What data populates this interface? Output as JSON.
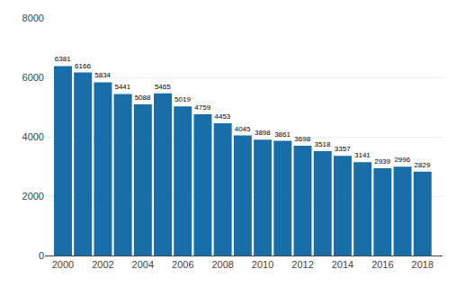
{
  "chart_data": {
    "type": "bar",
    "x": [
      2000,
      2001,
      2002,
      2003,
      2004,
      2005,
      2006,
      2007,
      2008,
      2009,
      2010,
      2011,
      2012,
      2013,
      2014,
      2015,
      2016,
      2017,
      2018
    ],
    "values": [
      6381,
      6166,
      5834,
      5441,
      5088,
      5465,
      5019,
      4759,
      4453,
      4045,
      3898,
      3861,
      3698,
      3518,
      3357,
      3141,
      2939,
      2996,
      2829
    ],
    "color": "#1a6ea8",
    "xlim": [
      1999.1,
      2019.0
    ],
    "xticks": [
      2000,
      2002,
      2004,
      2006,
      2008,
      2010,
      2012,
      2014,
      2016,
      2018
    ],
    "ylim": [
      0,
      8000
    ],
    "yticks": [
      0,
      2000,
      4000,
      6000,
      8000
    ],
    "grid": true,
    "data_labels": true
  }
}
